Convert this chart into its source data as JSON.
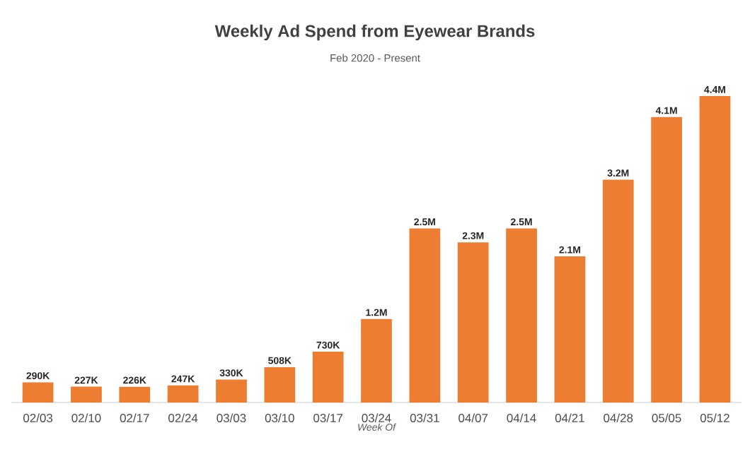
{
  "chart_data": {
    "type": "bar",
    "title": "Weekly Ad Spend from Eyewear Brands",
    "subtitle": "Feb 2020 - Present",
    "xlabel": "Week Of",
    "categories": [
      "02/03",
      "02/10",
      "02/17",
      "02/24",
      "03/03",
      "03/10",
      "03/17",
      "03/24",
      "03/31",
      "04/07",
      "04/14",
      "04/21",
      "04/28",
      "05/05",
      "05/12"
    ],
    "values": [
      290000,
      227000,
      226000,
      247000,
      330000,
      508000,
      730000,
      1200000,
      2500000,
      2300000,
      2500000,
      2100000,
      3200000,
      4100000,
      4400000
    ],
    "value_labels": [
      "290K",
      "227K",
      "226K",
      "247K",
      "330K",
      "508K",
      "730K",
      "1.2M",
      "2.5M",
      "2.3M",
      "2.5M",
      "2.1M",
      "3.2M",
      "4.1M",
      "4.4M"
    ],
    "color": "#ed7d31"
  }
}
